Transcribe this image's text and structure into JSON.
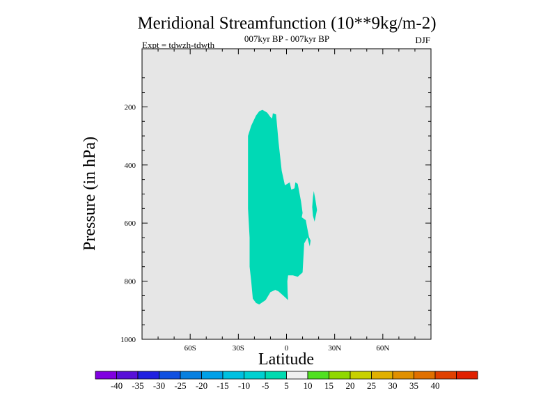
{
  "chart_data": {
    "type": "contour",
    "title": "Meridional Streamfunction (10**9kg/m-2)",
    "subtitle": "007kyr BP - 007kyr BP",
    "left_label": "Expt = tdwzh-tdwth",
    "right_label": "DJF",
    "xlabel": "Latitude",
    "ylabel": "Pressure (in hPa)",
    "xlim": [
      -90,
      90
    ],
    "ylim": [
      0,
      1000
    ],
    "y_inverted": true,
    "x_ticks": [
      {
        "value": -60,
        "label": "60S"
      },
      {
        "value": -30,
        "label": "30S"
      },
      {
        "value": 0,
        "label": "0"
      },
      {
        "value": 30,
        "label": "30N"
      },
      {
        "value": 60,
        "label": "60N"
      }
    ],
    "y_ticks": [
      {
        "value": 200,
        "label": "200"
      },
      {
        "value": 400,
        "label": "400"
      },
      {
        "value": 600,
        "label": "600"
      },
      {
        "value": 800,
        "label": "800"
      },
      {
        "value": 1000,
        "label": "1000"
      }
    ],
    "background_color": "#e6e6e6",
    "regions": [
      {
        "interval": "-10 to -5",
        "color": "#00d9b5",
        "outline": [
          [
            -8.5,
            222
          ],
          [
            -6.5,
            226
          ],
          [
            -5,
            320
          ],
          [
            -3,
            420
          ],
          [
            -1,
            470
          ],
          [
            2,
            460
          ],
          [
            3,
            485
          ],
          [
            5,
            480
          ],
          [
            5.5,
            460
          ],
          [
            7,
            465
          ],
          [
            9,
            525
          ],
          [
            10,
            565
          ],
          [
            9.5,
            580
          ],
          [
            12,
            590
          ],
          [
            13,
            620
          ],
          [
            14,
            648
          ],
          [
            15,
            660
          ],
          [
            14.5,
            680
          ],
          [
            13,
            650
          ],
          [
            11,
            670
          ],
          [
            10,
            770
          ],
          [
            7,
            785
          ],
          [
            4,
            780
          ],
          [
            1,
            780
          ],
          [
            0.5,
            800
          ],
          [
            0.7,
            840
          ],
          [
            1,
            865
          ],
          [
            -2,
            850
          ],
          [
            -5,
            835
          ],
          [
            -7,
            830
          ],
          [
            -10,
            838
          ],
          [
            -13,
            865
          ],
          [
            -17,
            880
          ],
          [
            -19,
            875
          ],
          [
            -21,
            860
          ],
          [
            -22,
            800
          ],
          [
            -23,
            750
          ],
          [
            -23,
            650
          ],
          [
            -24,
            550
          ],
          [
            -24,
            420
          ],
          [
            -24,
            300
          ],
          [
            -22,
            265
          ],
          [
            -19,
            230
          ],
          [
            -17,
            215
          ],
          [
            -15,
            210
          ],
          [
            -12,
            220
          ],
          [
            -10,
            235
          ],
          [
            -9,
            240
          ]
        ]
      },
      {
        "interval": "-10 to -5",
        "color": "#00d9b5",
        "outline": [
          [
            17,
            490
          ],
          [
            18,
            520
          ],
          [
            19,
            555
          ],
          [
            17.5,
            595
          ],
          [
            16.5,
            575
          ],
          [
            16,
            545
          ],
          [
            16.5,
            510
          ]
        ]
      }
    ],
    "colorbar": {
      "labels": [
        "-40",
        "-35",
        "-30",
        "-25",
        "-20",
        "-15",
        "-10",
        "-5",
        "5",
        "10",
        "15",
        "20",
        "25",
        "30",
        "35",
        "40"
      ],
      "colors": [
        "#8000e0",
        "#5810d8",
        "#2020e0",
        "#1050e0",
        "#0880e0",
        "#00a0e8",
        "#00c0e0",
        "#00d0d0",
        "#00dab0",
        "#f0f0f0",
        "#50e020",
        "#90d800",
        "#c8d000",
        "#e0b000",
        "#e09000",
        "#e07000",
        "#e04000",
        "#e02000"
      ]
    }
  }
}
